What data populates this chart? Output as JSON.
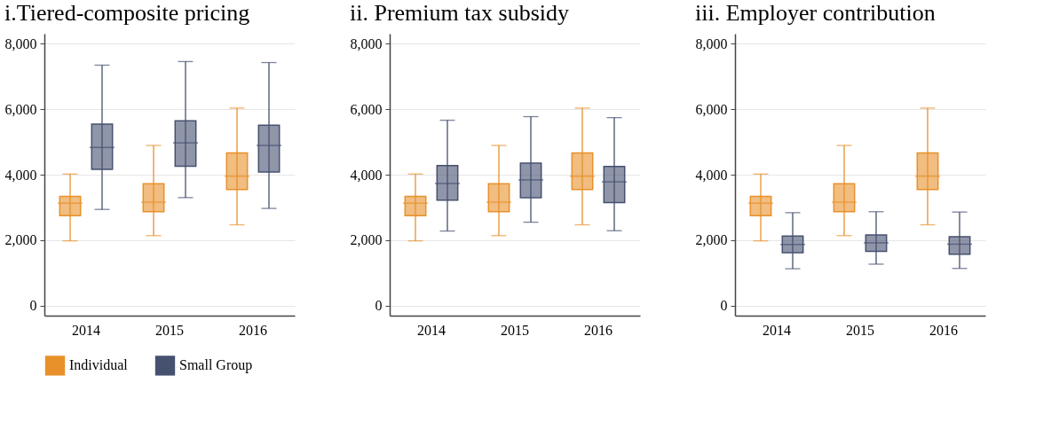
{
  "chart_data": [
    {
      "type": "box",
      "title": "i.Tiered-composite pricing",
      "categories": [
        "2014",
        "2015",
        "2016"
      ],
      "ylim": [
        -300,
        8300
      ],
      "yticks": [
        {
          "value": 0,
          "label": "0"
        },
        {
          "value": 2000,
          "label": "2,000"
        },
        {
          "value": 4000,
          "label": "4,000"
        },
        {
          "value": 6000,
          "label": "6,000"
        },
        {
          "value": 8000,
          "label": "8,000"
        }
      ],
      "grid": "y",
      "legend": "bottom",
      "series": [
        {
          "name": "Individual",
          "color": "#e8912b",
          "boxes": [
            {
              "low": 1980,
              "q1": 2750,
              "median": 3130,
              "q3": 3340,
              "high": 4020
            },
            {
              "low": 2140,
              "q1": 2870,
              "median": 3160,
              "q3": 3720,
              "high": 4890
            },
            {
              "low": 2470,
              "q1": 3550,
              "median": 3950,
              "q3": 4660,
              "high": 6030
            }
          ]
        },
        {
          "name": "Small Group",
          "color": "#46506f",
          "boxes": [
            {
              "low": 2940,
              "q1": 4160,
              "median": 4830,
              "q3": 5540,
              "high": 7340
            },
            {
              "low": 3300,
              "q1": 4260,
              "median": 4970,
              "q3": 5640,
              "high": 7450
            },
            {
              "low": 2970,
              "q1": 4080,
              "median": 4890,
              "q3": 5510,
              "high": 7420
            }
          ]
        }
      ]
    },
    {
      "type": "box",
      "title": "ii. Premium tax subsidy",
      "categories": [
        "2014",
        "2015",
        "2016"
      ],
      "ylim": [
        -300,
        8300
      ],
      "yticks": [
        {
          "value": 0,
          "label": "0"
        },
        {
          "value": 2000,
          "label": "2,000"
        },
        {
          "value": 4000,
          "label": "4,000"
        },
        {
          "value": 6000,
          "label": "6,000"
        },
        {
          "value": 8000,
          "label": "8,000"
        }
      ],
      "grid": "y",
      "legend": "bottom",
      "series": [
        {
          "name": "Individual",
          "color": "#e8912b",
          "boxes": [
            {
              "low": 1980,
              "q1": 2750,
              "median": 3130,
              "q3": 3340,
              "high": 4020
            },
            {
              "low": 2140,
              "q1": 2870,
              "median": 3160,
              "q3": 3720,
              "high": 4890
            },
            {
              "low": 2470,
              "q1": 3550,
              "median": 3950,
              "q3": 4660,
              "high": 6030
            }
          ]
        },
        {
          "name": "Small Group",
          "color": "#46506f",
          "boxes": [
            {
              "low": 2280,
              "q1": 3220,
              "median": 3730,
              "q3": 4280,
              "high": 5660
            },
            {
              "low": 2550,
              "q1": 3300,
              "median": 3840,
              "q3": 4350,
              "high": 5770
            },
            {
              "low": 2290,
              "q1": 3150,
              "median": 3780,
              "q3": 4250,
              "high": 5740
            }
          ]
        }
      ]
    },
    {
      "type": "box",
      "title": "iii. Employer contribution",
      "categories": [
        "2014",
        "2015",
        "2016"
      ],
      "ylim": [
        -300,
        8300
      ],
      "yticks": [
        {
          "value": 0,
          "label": "0"
        },
        {
          "value": 2000,
          "label": "2,000"
        },
        {
          "value": 4000,
          "label": "4,000"
        },
        {
          "value": 6000,
          "label": "6,000"
        },
        {
          "value": 8000,
          "label": "8,000"
        }
      ],
      "grid": "y",
      "legend": "bottom",
      "series": [
        {
          "name": "Individual",
          "color": "#e8912b",
          "boxes": [
            {
              "low": 1980,
              "q1": 2750,
              "median": 3130,
              "q3": 3340,
              "high": 4020
            },
            {
              "low": 2140,
              "q1": 2870,
              "median": 3160,
              "q3": 3720,
              "high": 4890
            },
            {
              "low": 2470,
              "q1": 3550,
              "median": 3950,
              "q3": 4660,
              "high": 6030
            }
          ]
        },
        {
          "name": "Small Group",
          "color": "#46506f",
          "boxes": [
            {
              "low": 1130,
              "q1": 1620,
              "median": 1870,
              "q3": 2130,
              "high": 2840
            },
            {
              "low": 1270,
              "q1": 1660,
              "median": 1920,
              "q3": 2160,
              "high": 2870
            },
            {
              "low": 1140,
              "q1": 1570,
              "median": 1880,
              "q3": 2110,
              "high": 2860
            }
          ]
        }
      ]
    }
  ]
}
